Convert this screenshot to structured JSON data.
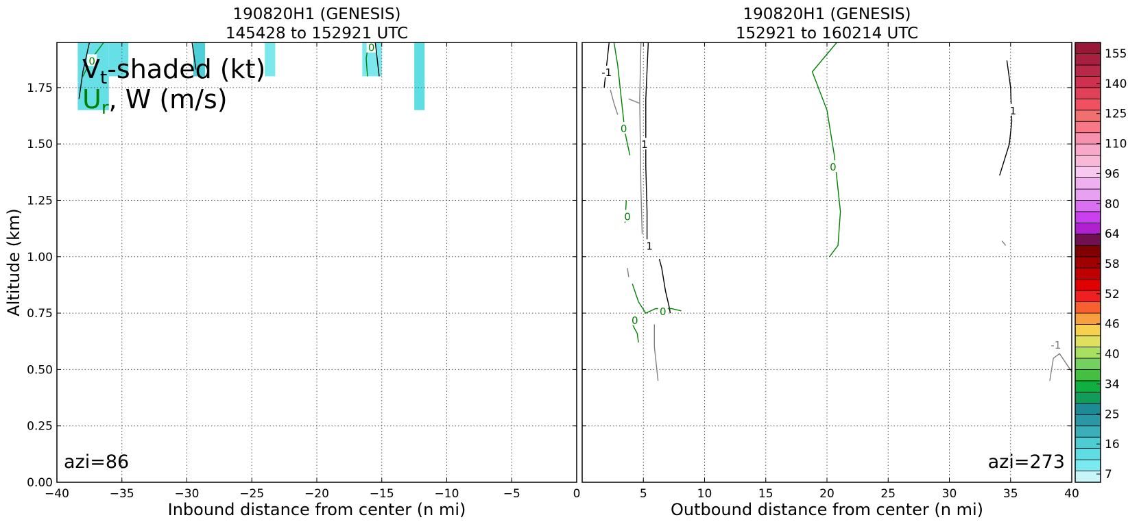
{
  "chart_data": [
    {
      "type": "contour",
      "title_line1": "190820H1 (GENESIS)",
      "title_line2": "145428 to 152921 UTC",
      "xlabel": "Inbound distance from center (n mi)",
      "ylabel": "Altitude (km)",
      "xlim": [
        -40,
        0
      ],
      "ylim": [
        0,
        1.95
      ],
      "xticks": [
        -40,
        -35,
        -30,
        -25,
        -20,
        -15,
        -10,
        -5,
        0
      ],
      "xtick_labels": [
        "−40",
        "−35",
        "−30",
        "−25",
        "−20",
        "−15",
        "−10",
        "−5",
        "0"
      ],
      "yticks": [
        0,
        0.25,
        0.5,
        0.75,
        1.0,
        1.25,
        1.5,
        1.75
      ],
      "ytick_labels": [
        "0.00",
        "0.25",
        "0.50",
        "0.75",
        "1.00",
        "1.25",
        "1.50",
        "1.75"
      ],
      "grid": true,
      "azimuth_label": "azi=86",
      "legend": {
        "line1": "V",
        "line1_sub": "t",
        "line1_rest": "-shaded (kt)",
        "line2": "U",
        "line2_sub": "r",
        "line2_rest": ", W (m/s)"
      },
      "shaded_cells": [
        {
          "x0": -38.4,
          "x1": -36.0,
          "y0": 1.65,
          "y1": 1.95,
          "color": "#66e0e6"
        },
        {
          "x0": -36.0,
          "x1": -34.5,
          "y0": 1.8,
          "y1": 1.95,
          "color": "#66e0e6"
        },
        {
          "x0": -29.5,
          "x1": -28.6,
          "y0": 1.8,
          "y1": 1.95,
          "color": "#4ccfd6"
        },
        {
          "x0": -24.0,
          "x1": -23.2,
          "y0": 1.8,
          "y1": 1.95,
          "color": "#7ae8ec"
        },
        {
          "x0": -16.5,
          "x1": -15.0,
          "y0": 1.8,
          "y1": 1.95,
          "color": "#7ae8ec"
        },
        {
          "x0": -12.5,
          "x1": -11.7,
          "y0": 1.65,
          "y1": 1.95,
          "color": "#5edde3"
        }
      ],
      "contours": [
        {
          "color": "#008000",
          "label": "0",
          "label_at": [
            -37.3,
            1.87
          ],
          "points": [
            [
              -36.4,
              1.95
            ],
            [
              -37.3,
              1.88
            ],
            [
              -38.0,
              1.8
            ]
          ]
        },
        {
          "color": "#000000",
          "label": "",
          "points": [
            [
              -37.5,
              1.95
            ],
            [
              -38.0,
              1.82
            ],
            [
              -38.3,
              1.7
            ]
          ]
        },
        {
          "color": "#000000",
          "label": "",
          "points": [
            [
              -29.6,
              1.95
            ],
            [
              -29.3,
              1.83
            ]
          ]
        },
        {
          "color": "#008000",
          "label": "0",
          "label_at": [
            -15.8,
            1.93
          ],
          "points": [
            [
              -16.0,
              1.95
            ],
            [
              -16.2,
              1.88
            ],
            [
              -16.1,
              1.8
            ]
          ]
        },
        {
          "color": "#000000",
          "label": "",
          "points": [
            [
              -15.5,
              1.95
            ],
            [
              -15.2,
              1.8
            ]
          ]
        }
      ]
    },
    {
      "type": "contour",
      "title_line1": "190820H1 (GENESIS)",
      "title_line2": "152921 to 160214 UTC",
      "xlabel": "Outbound distance from center (n mi)",
      "xlim": [
        0,
        40
      ],
      "ylim": [
        0,
        1.95
      ],
      "xticks": [
        0,
        5,
        10,
        15,
        20,
        25,
        30,
        35,
        40
      ],
      "xtick_labels": [
        "0",
        "5",
        "10",
        "15",
        "20",
        "25",
        "30",
        "35",
        "40"
      ],
      "grid": true,
      "azimuth_label": "azi=273",
      "contours": [
        {
          "color": "#000000",
          "label": "1",
          "label_at": [
            5.1,
            1.5
          ],
          "points": [
            [
              5.4,
              1.95
            ],
            [
              5.2,
              1.7
            ],
            [
              5.2,
              1.4
            ],
            [
              5.3,
              1.2
            ],
            [
              5.3,
              1.05
            ]
          ]
        },
        {
          "color": "#000000",
          "label": "1",
          "label_at": [
            5.5,
            1.05
          ],
          "points": [
            [
              6.3,
              0.99
            ],
            [
              6.5,
              0.95
            ],
            [
              6.8,
              0.85
            ],
            [
              7.1,
              0.78
            ],
            [
              7.2,
              0.75
            ]
          ]
        },
        {
          "color": "#000000",
          "label": "-1",
          "label_at": [
            2.0,
            1.82
          ],
          "points": [
            [
              2.2,
              1.95
            ],
            [
              2.0,
              1.85
            ],
            [
              1.8,
              1.75
            ]
          ]
        },
        {
          "color": "#000000",
          "label": "1",
          "label_at": [
            35.2,
            1.65
          ],
          "points": [
            [
              34.7,
              1.87
            ],
            [
              35.0,
              1.75
            ],
            [
              35.1,
              1.6
            ],
            [
              34.9,
              1.5
            ],
            [
              34.1,
              1.36
            ]
          ]
        },
        {
          "color": "#808080",
          "label": "",
          "points": [
            [
              2.3,
              1.74
            ],
            [
              2.6,
              1.68
            ],
            [
              2.9,
              1.63
            ]
          ]
        },
        {
          "color": "#808080",
          "label": "",
          "points": [
            [
              4.8,
              1.95
            ],
            [
              4.7,
              1.7
            ],
            [
              4.8,
              1.3
            ],
            [
              4.9,
              1.1
            ]
          ]
        },
        {
          "color": "#808080",
          "label": "",
          "points": [
            [
              3.8,
              1.7
            ],
            [
              4.7,
              1.68
            ]
          ]
        },
        {
          "color": "#808080",
          "label": "",
          "points": [
            [
              5.9,
              0.7
            ],
            [
              5.9,
              0.6
            ],
            [
              6.2,
              0.45
            ]
          ]
        },
        {
          "color": "#808080",
          "label": "",
          "points": [
            [
              3.7,
              0.95
            ],
            [
              3.8,
              0.91
            ]
          ]
        },
        {
          "color": "#808080",
          "label": "-1",
          "label_at": [
            38.7,
            0.61
          ],
          "points": [
            [
              38.2,
              0.45
            ],
            [
              38.5,
              0.55
            ],
            [
              39.0,
              0.57
            ],
            [
              40.0,
              0.49
            ]
          ]
        },
        {
          "color": "#808080",
          "label": "",
          "points": [
            [
              34.3,
              1.07
            ],
            [
              34.6,
              1.05
            ]
          ]
        },
        {
          "color": "#008000",
          "label": "0",
          "label_at": [
            3.4,
            1.57
          ],
          "points": [
            [
              2.6,
              1.95
            ],
            [
              2.9,
              1.85
            ],
            [
              3.2,
              1.7
            ],
            [
              3.5,
              1.55
            ],
            [
              3.9,
              1.45
            ]
          ]
        },
        {
          "color": "#008000",
          "label": "0",
          "label_at": [
            3.7,
            1.18
          ],
          "points": [
            [
              3.6,
              1.25
            ],
            [
              3.5,
              1.15
            ]
          ]
        },
        {
          "color": "#008000",
          "label": "0",
          "label_at": [
            20.5,
            1.4
          ],
          "points": [
            [
              20.8,
              1.95
            ],
            [
              18.8,
              1.82
            ],
            [
              20.0,
              1.65
            ],
            [
              20.6,
              1.45
            ],
            [
              20.9,
              1.3
            ],
            [
              21.1,
              1.2
            ],
            [
              20.9,
              1.05
            ],
            [
              20.2,
              1.0
            ]
          ]
        },
        {
          "color": "#008000",
          "label": "0",
          "label_at": [
            6.6,
            0.76
          ],
          "points": [
            [
              4.1,
              0.88
            ],
            [
              4.6,
              0.8
            ],
            [
              5.2,
              0.75
            ],
            [
              6.0,
              0.77
            ],
            [
              7.3,
              0.77
            ],
            [
              8.1,
              0.76
            ]
          ]
        },
        {
          "color": "#008000",
          "label": "0",
          "label_at": [
            4.3,
            0.72
          ],
          "points": [
            [
              4.0,
              0.71
            ],
            [
              4.5,
              0.66
            ],
            [
              4.6,
              0.62
            ]
          ]
        }
      ]
    }
  ],
  "colorbar": {
    "colors": [
      "#c8f6f8",
      "#7aeaf0",
      "#5fdde3",
      "#4fcbd2",
      "#3aafba",
      "#2a97a5",
      "#1d8b96",
      "#119c5a",
      "#10b040",
      "#44c040",
      "#74d060",
      "#a8e060",
      "#e0e060",
      "#f8d050",
      "#f8a040",
      "#f86030",
      "#f02020",
      "#e00000",
      "#c00000",
      "#a00000",
      "#800000",
      "#701050",
      "#b020d0",
      "#c840f0",
      "#d870f0",
      "#e8a0f0",
      "#f0b0f0",
      "#f8c8f0",
      "#f8b8d8",
      "#f8a8c8",
      "#f890b0",
      "#f87888",
      "#f07070",
      "#f05060",
      "#e04058",
      "#d03050",
      "#b82848",
      "#a82040",
      "#981838"
    ],
    "tick_labels": [
      "7",
      "16",
      "25",
      "34",
      "40",
      "46",
      "52",
      "58",
      "64",
      "80",
      "96",
      "110",
      "125",
      "140",
      "155"
    ]
  }
}
